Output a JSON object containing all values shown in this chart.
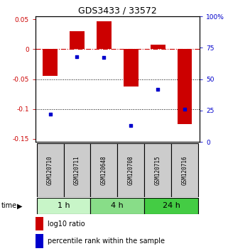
{
  "title": "GDS3433 / 33572",
  "samples": [
    "GSM120710",
    "GSM120711",
    "GSM120648",
    "GSM120708",
    "GSM120715",
    "GSM120716"
  ],
  "log10_ratio": [
    -0.045,
    0.03,
    0.047,
    -0.062,
    0.008,
    -0.125
  ],
  "percentile_rank": [
    22,
    68,
    67,
    13,
    42,
    26
  ],
  "groups": [
    {
      "label": "1 h",
      "indices": [
        0,
        1
      ],
      "color": "#c8f5c8"
    },
    {
      "label": "4 h",
      "indices": [
        2,
        3
      ],
      "color": "#88dd88"
    },
    {
      "label": "24 h",
      "indices": [
        4,
        5
      ],
      "color": "#44cc44"
    }
  ],
  "bar_color": "#cc0000",
  "dot_color": "#0000cc",
  "ylim_left": [
    -0.155,
    0.055
  ],
  "ylim_right": [
    0,
    100
  ],
  "yticks_left": [
    0.05,
    0.0,
    -0.05,
    -0.1,
    -0.15
  ],
  "yticks_right": [
    100,
    75,
    50,
    25,
    0
  ],
  "zero_line_color": "#cc0000",
  "dotted_line_color": "#000000",
  "sample_box_color": "#cccccc",
  "background_color": "#ffffff"
}
